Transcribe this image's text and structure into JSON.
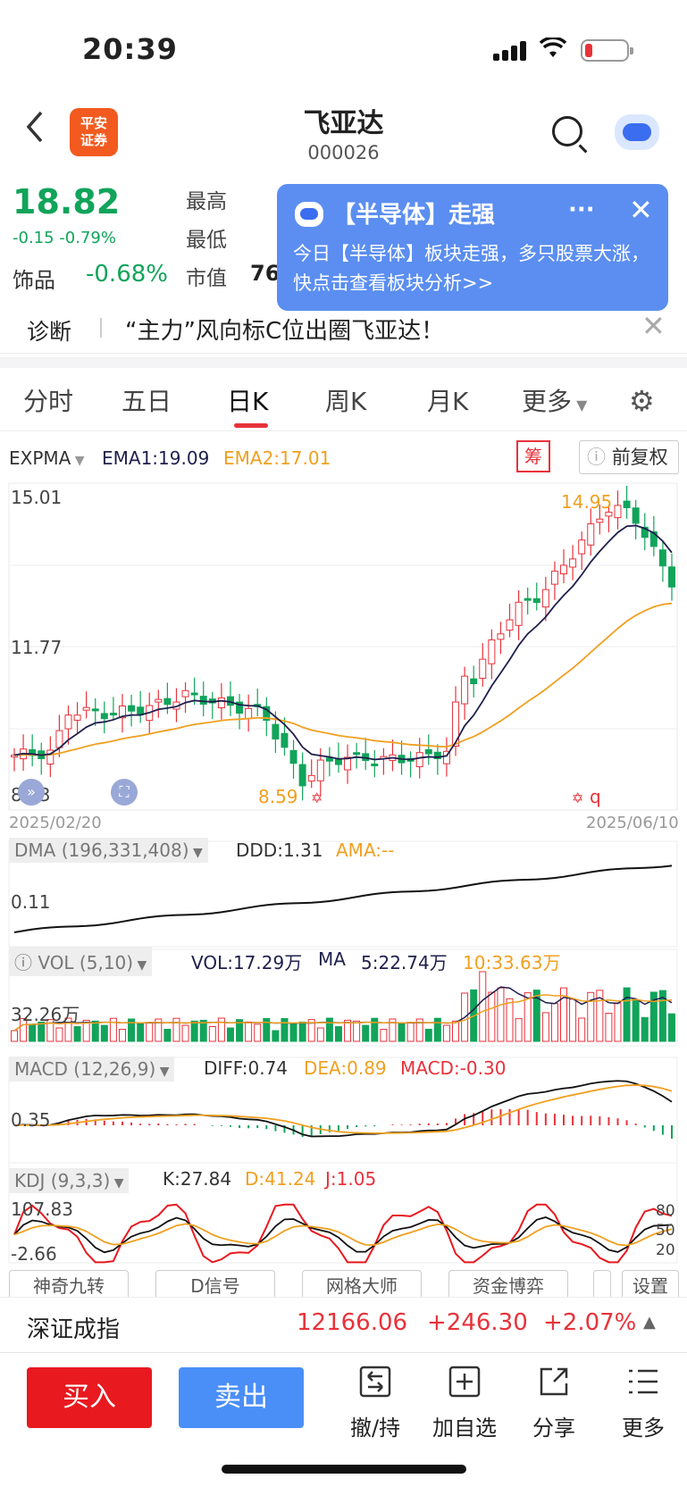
{
  "status_bar": {
    "time": "20:39"
  },
  "header": {
    "logo_line1": "平安",
    "logo_line2": "证券",
    "name": "飞亚达",
    "code": "000026"
  },
  "quote": {
    "price": "18.82",
    "change": "-0.15 -0.79%",
    "high_label": "最高",
    "low_label": "最低",
    "mktcap_label": "市值",
    "mktcap_value_partial": "76",
    "sector": "饰品",
    "sector_change": "-0.68%"
  },
  "popup": {
    "title": "【半导体】走强",
    "more": "···",
    "close": "✕",
    "body": "今日【半导体】板块走强，多只股票大涨，快点击查看板块分析>>"
  },
  "diagnose": {
    "label": "诊断",
    "text": "“主力”风向标C位出圈飞亚达！",
    "close": "✕"
  },
  "tabs": [
    "分时",
    "五日",
    "日K",
    "周K",
    "月K",
    "更多"
  ],
  "active_tab": "日K",
  "main_chart": {
    "indicator": "EXPMA",
    "ema1": "EMA1:19.09",
    "ema2": "EMA2:17.01",
    "chou": "筹",
    "adjust": "前复权",
    "y_labels": [
      "15.01",
      "11.77",
      "8.53"
    ],
    "high_mark": "14.95",
    "low_mark": "8.59",
    "start_date": "2025/02/20",
    "end_date": "2025/06/10",
    "q_mark": "q"
  },
  "dma": {
    "name": "DMA (196,331,408)",
    "ddd": "DDD:1.31",
    "ama": "AMA:--",
    "y_label": "0.11"
  },
  "vol": {
    "name": "VOL (5,10)",
    "vol": "VOL:17.29万",
    "ma": "MA",
    "ma5": "5:22.74万",
    "ma10": "10:33.63万",
    "y_label": "32.26万"
  },
  "macd": {
    "name": "MACD (12,26,9)",
    "diff": "DIFF:0.74",
    "dea": "DEA:0.89",
    "macd": "MACD:-0.30",
    "y_label": "0.35"
  },
  "kdj": {
    "name": "KDJ (9,3,3)",
    "k": "K:27.84",
    "d": "D:41.24",
    "j": "J:1.05",
    "y_top": "107.83",
    "y_bottom": "-2.66",
    "levels": [
      "80",
      "50",
      "20"
    ]
  },
  "tools": [
    "神奇九转",
    "D信号",
    "网格大师",
    "资金博弈",
    "设置"
  ],
  "index": {
    "name": "深证成指",
    "value": "12166.06",
    "change": "+246.30",
    "pct": "+2.07%"
  },
  "bottom_bar": {
    "buy": "买入",
    "sell": "卖出",
    "actions": [
      "撤/持",
      "加自选",
      "分享",
      "更多"
    ]
  },
  "colors": {
    "up": "#e8323a",
    "down": "#11a45a",
    "ema1": "#1f1f4d",
    "ema2": "#f0a020",
    "accent_blue": "#4a8ef7"
  }
}
